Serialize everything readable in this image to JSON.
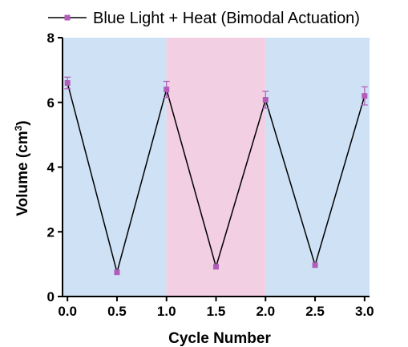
{
  "chart_data": {
    "type": "line",
    "title": "",
    "xlabel": "Cycle Number",
    "ylabel": "Volume (cm",
    "ylabel_sup": "3",
    "ylabel_close": ")",
    "xlim": [
      -0.05,
      3.05
    ],
    "ylim": [
      0,
      8
    ],
    "x_ticks": [
      "0.0",
      "0.5",
      "1.0",
      "1.5",
      "2.0",
      "2.5",
      "3.0"
    ],
    "y_ticks": [
      "0",
      "2",
      "4",
      "6",
      "8"
    ],
    "grid": false,
    "legend_position": "top",
    "series": [
      {
        "name": "Blue Light + Heat (Bimodal Actuation)",
        "color": "#b05cb8",
        "line_color": "#000000",
        "x": [
          0.0,
          0.5,
          1.0,
          1.5,
          2.0,
          2.5,
          3.0
        ],
        "y": [
          6.6,
          0.75,
          6.4,
          0.92,
          6.08,
          0.97,
          6.2
        ],
        "error": [
          0.18,
          0.0,
          0.25,
          0.0,
          0.26,
          0.0,
          0.28
        ]
      }
    ],
    "background_bands": [
      {
        "from": -0.05,
        "to": 1.0,
        "color": "#cfe1f4"
      },
      {
        "from": 1.0,
        "to": 2.0,
        "color": "#f3cfe4"
      },
      {
        "from": 2.0,
        "to": 3.05,
        "color": "#cfe1f4"
      }
    ]
  }
}
